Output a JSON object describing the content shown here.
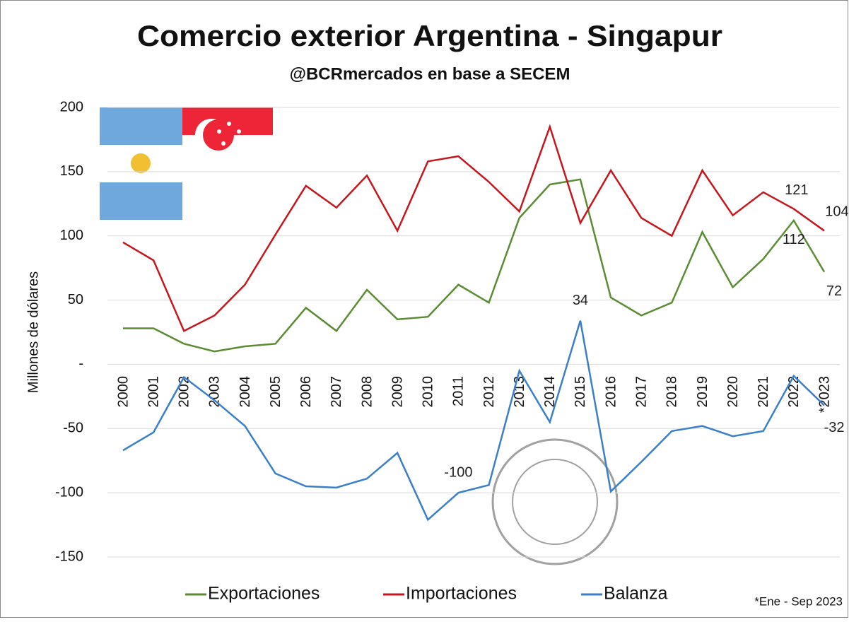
{
  "chart_data": {
    "type": "line",
    "title": "Comercio exterior Argentina - Singapur",
    "subtitle": "@BCRmercados en base a SECEM",
    "y_label": "Millones de dólares",
    "note": "*Ene - Sep 2023",
    "categories": [
      "2000",
      "2001",
      "2002",
      "2003",
      "2004",
      "2005",
      "2006",
      "2007",
      "2008",
      "2009",
      "2010",
      "2011",
      "2012",
      "2013",
      "2014",
      "2015",
      "2016",
      "2017",
      "2018",
      "2019",
      "2020",
      "2021",
      "2022",
      "*2023"
    ],
    "series": [
      {
        "name": "Exportaciones",
        "color": "#5b8c33",
        "values": [
          28,
          28,
          16,
          10,
          14,
          16,
          44,
          26,
          58,
          35,
          37,
          62,
          48,
          114,
          140,
          144,
          52,
          38,
          48,
          103,
          60,
          82,
          112,
          72
        ],
        "value_labels": [
          null,
          null,
          null,
          null,
          null,
          null,
          null,
          null,
          null,
          null,
          null,
          null,
          null,
          null,
          null,
          null,
          null,
          null,
          null,
          null,
          null,
          null,
          "112",
          "72"
        ]
      },
      {
        "name": "Importaciones",
        "color": "#c4161c",
        "values": [
          95,
          81,
          26,
          38,
          62,
          101,
          139,
          122,
          147,
          104,
          158,
          162,
          142,
          119,
          185,
          110,
          151,
          114,
          100,
          151,
          116,
          134,
          121,
          104
        ],
        "value_labels": [
          null,
          null,
          null,
          null,
          null,
          null,
          null,
          null,
          null,
          null,
          null,
          null,
          null,
          null,
          null,
          null,
          null,
          null,
          null,
          null,
          null,
          null,
          "121",
          "104"
        ]
      },
      {
        "name": "Balanza",
        "color": "#3a7fc9",
        "values": [
          -67,
          -53,
          -10,
          -28,
          -48,
          -85,
          -95,
          -96,
          -89,
          -69,
          -121,
          -100,
          -94,
          -5,
          -45,
          34,
          -99,
          -76,
          -52,
          -48,
          -56,
          -52,
          -9,
          -32
        ],
        "value_labels": [
          null,
          null,
          null,
          null,
          null,
          null,
          null,
          null,
          null,
          null,
          null,
          "-100",
          null,
          null,
          null,
          "34",
          null,
          null,
          null,
          null,
          null,
          null,
          null,
          "-32"
        ]
      }
    ],
    "ylim": [
      -150,
      200
    ],
    "yticks": [
      -150,
      -100,
      -50,
      {
        "value": 0,
        "label": "-"
      },
      50,
      100,
      150,
      200
    ],
    "grid": true
  }
}
